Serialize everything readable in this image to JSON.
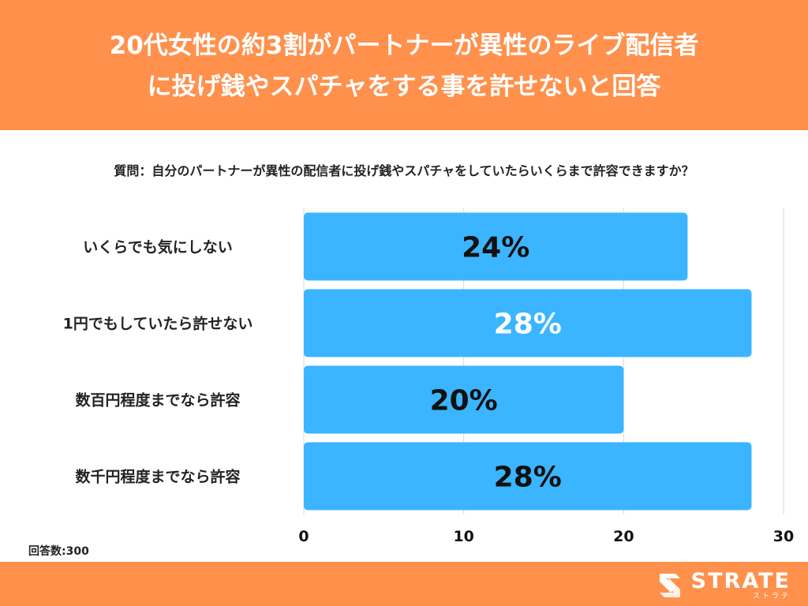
{
  "header": {
    "title_line1": "20代女性の約3割がパートナーが異性のライブ配信者",
    "title_line2": "に投げ銭やスパチャをする事を許せないと回答"
  },
  "question": "質問：自分のパートナーが異性の配信者に投げ銭やスパチャをしていたらいくらまで許容できますか？",
  "footnote": "回答数:300",
  "logo": {
    "text": "STRATE",
    "sub": "ストラテ"
  },
  "colors": {
    "accent": "#FF914D",
    "bar": "#3BB5FF",
    "label_dark": "#111111",
    "label_light": "#ffffff"
  },
  "chart_data": {
    "type": "bar",
    "orientation": "horizontal",
    "categories": [
      "いくらでも気にしない",
      "1円でもしていたら許せない",
      "数百円程度までなら許容",
      "数千円程度までなら許容"
    ],
    "values": [
      24,
      28,
      20,
      28
    ],
    "data_labels": [
      "24%",
      "28%",
      "20%",
      "28%"
    ],
    "label_colors": [
      "dark",
      "light",
      "dark",
      "dark"
    ],
    "xticks": [
      0,
      10,
      20,
      30
    ],
    "xlim": [
      0,
      30
    ],
    "grid": true,
    "title": "",
    "xlabel": "",
    "ylabel": ""
  }
}
